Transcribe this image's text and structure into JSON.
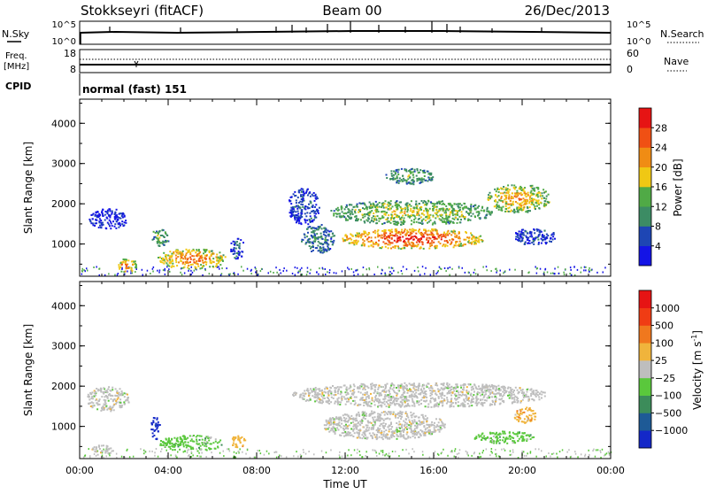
{
  "header": {
    "station": "Stokkseyri (fitACF)",
    "beam": "Beam 00",
    "date": "26/Dec/2013"
  },
  "panels": {
    "nsky": {
      "left_label": "N.Sky",
      "left_ticks": [
        "10^5",
        "10^0"
      ],
      "right_ticks": [
        "10^5",
        "10^0"
      ],
      "right_label": "N.Search"
    },
    "freq": {
      "left_label_1": "Freq.",
      "left_label_2": "[MHz]",
      "left_ticks": [
        "18",
        "8"
      ],
      "right_ticks": [
        "60",
        "0"
      ],
      "right_label": "Nave"
    },
    "cpid": {
      "label": "CPID",
      "value": "normal (fast) 151"
    }
  },
  "chart_data": [
    {
      "type": "heatmap",
      "name": "power",
      "ylabel": "Slant Range [km]",
      "yticks": [
        "1000",
        "2000",
        "3000",
        "4000"
      ],
      "ylim": [
        200,
        4600
      ],
      "xlim": [
        0,
        24
      ],
      "colorbar": {
        "label": "Power [dB]",
        "ticks": [
          "4",
          "8",
          "12",
          "16",
          "20",
          "24",
          "28"
        ],
        "colors": [
          "#1414e6",
          "#1e46b4",
          "#3c8c64",
          "#50aa46",
          "#f0c814",
          "#f08c14",
          "#f05014",
          "#e61414"
        ]
      },
      "features": [
        {
          "t0": 0.4,
          "t1": 2.2,
          "r0": 1400,
          "r1": 1900,
          "level": 0
        },
        {
          "t0": 1.6,
          "t1": 2.6,
          "r0": 320,
          "r1": 650,
          "level": 6
        },
        {
          "t0": 3.5,
          "t1": 6.6,
          "r0": 400,
          "r1": 900,
          "level": 6
        },
        {
          "t0": 3.2,
          "t1": 4.0,
          "r0": 950,
          "r1": 1400,
          "level": 3
        },
        {
          "t0": 6.8,
          "t1": 7.4,
          "r0": 650,
          "r1": 1200,
          "level": 1
        },
        {
          "t0": 9.4,
          "t1": 10.8,
          "r0": 1500,
          "r1": 2400,
          "level": 1
        },
        {
          "t0": 10.0,
          "t1": 11.5,
          "r0": 800,
          "r1": 1500,
          "level": 2
        },
        {
          "t0": 11.3,
          "t1": 18.6,
          "r0": 1500,
          "r1": 2100,
          "level": 4
        },
        {
          "t0": 11.8,
          "t1": 18.2,
          "r0": 900,
          "r1": 1400,
          "level": 7
        },
        {
          "t0": 18.4,
          "t1": 21.2,
          "r0": 1800,
          "r1": 2500,
          "level": 5
        },
        {
          "t0": 19.5,
          "t1": 21.5,
          "r0": 1000,
          "r1": 1400,
          "level": 1
        },
        {
          "t0": 13.8,
          "t1": 16.0,
          "r0": 2500,
          "r1": 2900,
          "level": 3
        }
      ]
    },
    {
      "type": "heatmap",
      "name": "velocity",
      "ylabel": "Slant Range [km]",
      "yticks": [
        "1000",
        "2000",
        "3000",
        "4000"
      ],
      "ylim": [
        200,
        4600
      ],
      "xlim": [
        0,
        24
      ],
      "xlabel": "Time UT",
      "xticks": [
        "00:00",
        "04:00",
        "08:00",
        "12:00",
        "16:00",
        "20:00",
        "00:00"
      ],
      "colorbar": {
        "label": "Velocity [m s",
        "label_sup": "-1",
        "label_end": "]",
        "ticks": [
          "1000",
          "500",
          "100",
          "25",
          "−25",
          "−100",
          "−500",
          "−1000"
        ],
        "colors": [
          "#1428c8",
          "#1e5a96",
          "#3c8c5a",
          "#5ac83c",
          "#bebebe",
          "#f0b43c",
          "#f0781e",
          "#f03c14",
          "#e61414"
        ]
      },
      "features": [
        {
          "t0": 0.3,
          "t1": 2.2,
          "r0": 1400,
          "r1": 2000,
          "level": 4
        },
        {
          "t0": 0.5,
          "t1": 1.5,
          "r0": 300,
          "r1": 550,
          "level": 4
        },
        {
          "t0": 3.2,
          "t1": 3.6,
          "r0": 700,
          "r1": 1300,
          "level": 0
        },
        {
          "t0": 3.6,
          "t1": 6.4,
          "r0": 400,
          "r1": 800,
          "level": 3
        },
        {
          "t0": 6.8,
          "t1": 7.5,
          "r0": 500,
          "r1": 800,
          "level": 5
        },
        {
          "t0": 9.6,
          "t1": 21.0,
          "r0": 1500,
          "r1": 2100,
          "level": 4
        },
        {
          "t0": 11.0,
          "t1": 16.5,
          "r0": 700,
          "r1": 1400,
          "level": 4
        },
        {
          "t0": 17.8,
          "t1": 20.5,
          "r0": 600,
          "r1": 900,
          "level": 3
        },
        {
          "t0": 19.6,
          "t1": 20.6,
          "r0": 1100,
          "r1": 1500,
          "level": 5
        }
      ]
    }
  ]
}
